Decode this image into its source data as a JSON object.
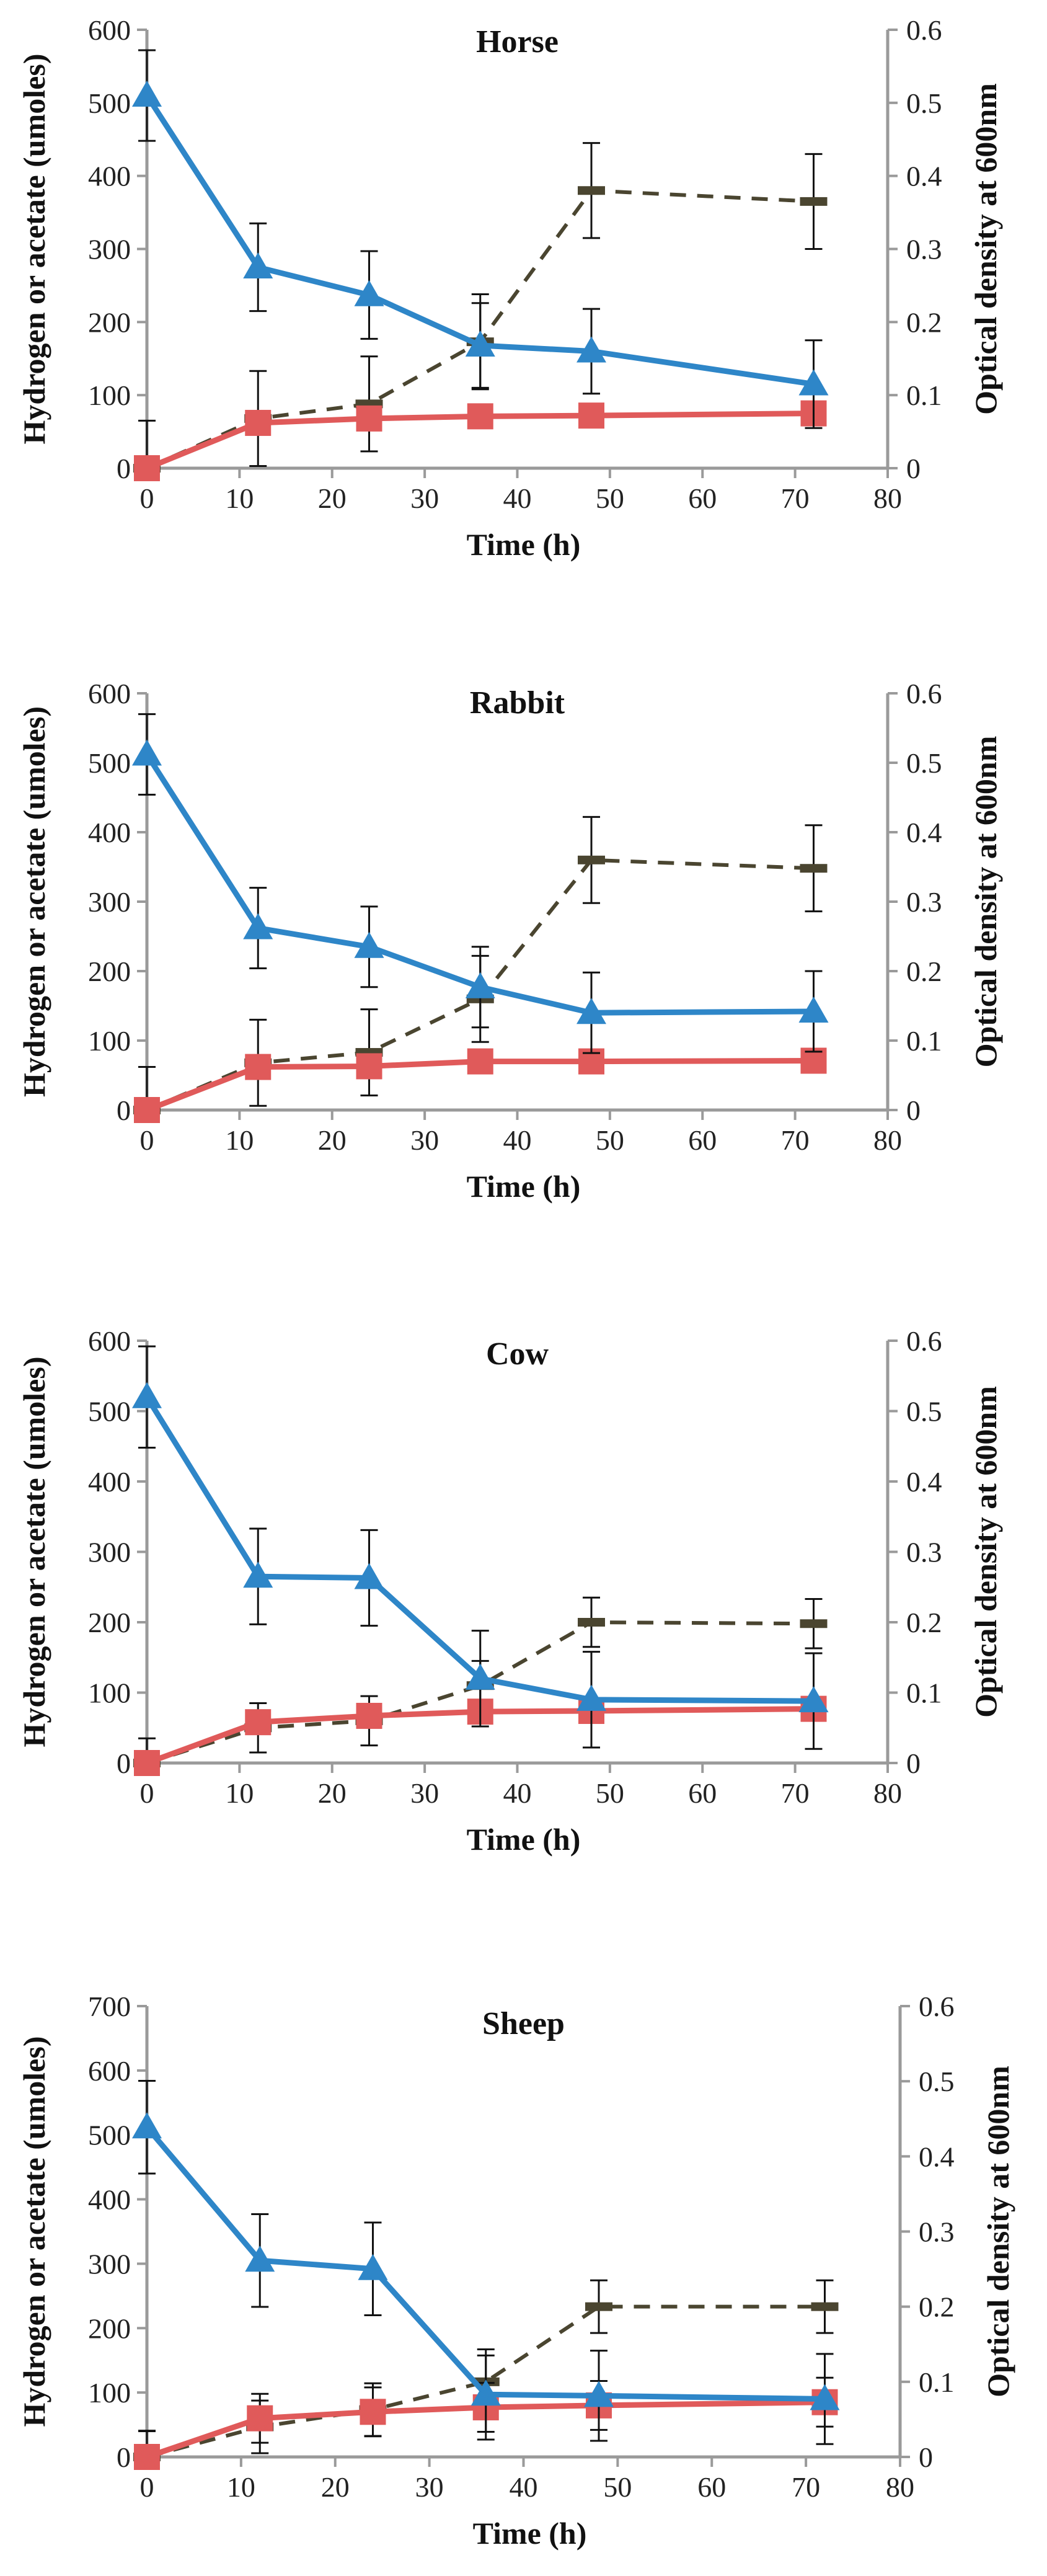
{
  "colors": {
    "hydrogen": "#2E86C8",
    "acetate": "#E05A5A",
    "od": "#4A4530",
    "axis_left": "#9a9a9a",
    "axis_right": "#9a9a9a",
    "error_bar": "#111111"
  },
  "chart_data": [
    {
      "type": "line",
      "title": "Horse",
      "xlabel": "Time (h)",
      "ylabel": "Hydrogen or acetate (umoles)",
      "y2label": "Optical density at 600nm",
      "xlim": [
        0,
        80
      ],
      "xticks": [
        0,
        10,
        20,
        30,
        40,
        50,
        60,
        70,
        80
      ],
      "ylim": [
        0,
        600
      ],
      "yticks": [
        0,
        100,
        200,
        300,
        400,
        500,
        600
      ],
      "y2lim": [
        0,
        0.6
      ],
      "y2ticks": [
        "0",
        "0.1",
        "0.2",
        "0.3",
        "0.4",
        "0.5",
        "0.6"
      ],
      "x": [
        0,
        12,
        24,
        36,
        48,
        72
      ],
      "series": [
        {
          "name": "Hydrogen",
          "axis": "left",
          "marker": "triangle",
          "values": [
            510,
            275,
            237,
            168,
            160,
            115
          ],
          "errors": [
            62,
            60,
            60,
            58,
            58,
            60
          ]
        },
        {
          "name": "Acetate",
          "axis": "left",
          "marker": "square",
          "values": [
            0,
            62,
            68,
            71,
            72,
            75
          ],
          "errors": [
            0,
            0,
            0,
            0,
            0,
            0
          ]
        },
        {
          "name": "Optical density",
          "axis": "right",
          "marker": "dash",
          "dashed": true,
          "values": [
            0,
            0.068,
            0.088,
            0.173,
            0.38,
            0.365
          ],
          "errors": [
            0.065,
            0.065,
            0.065,
            0.065,
            0.065,
            0.065
          ]
        }
      ]
    },
    {
      "type": "line",
      "title": "Rabbit",
      "xlabel": "Time (h)",
      "ylabel": "Hydrogen or acetate (umoles)",
      "y2label": "Optical density at 600nm",
      "xlim": [
        0,
        80
      ],
      "xticks": [
        0,
        10,
        20,
        30,
        40,
        50,
        60,
        70,
        80
      ],
      "ylim": [
        0,
        600
      ],
      "yticks": [
        0,
        100,
        200,
        300,
        400,
        500,
        600
      ],
      "y2lim": [
        0,
        0.6
      ],
      "y2ticks": [
        "0",
        "0.1",
        "0.2",
        "0.3",
        "0.4",
        "0.5",
        "0.6"
      ],
      "x": [
        0,
        12,
        24,
        36,
        48,
        72
      ],
      "series": [
        {
          "name": "Hydrogen",
          "axis": "left",
          "marker": "triangle",
          "values": [
            512,
            262,
            235,
            177,
            140,
            142
          ],
          "errors": [
            58,
            58,
            58,
            58,
            58,
            58
          ]
        },
        {
          "name": "Acetate",
          "axis": "left",
          "marker": "square",
          "values": [
            0,
            62,
            63,
            70,
            70,
            71
          ],
          "errors": [
            0,
            0,
            0,
            0,
            0,
            0
          ]
        },
        {
          "name": "Optical density",
          "axis": "right",
          "marker": "dash",
          "dashed": true,
          "values": [
            0,
            0.068,
            0.083,
            0.16,
            0.36,
            0.348
          ],
          "errors": [
            0.062,
            0.062,
            0.062,
            0.062,
            0.062,
            0.062
          ]
        }
      ]
    },
    {
      "type": "line",
      "title": "Cow",
      "xlabel": "Time (h)",
      "ylabel": "Hydrogen or acetate (umoles)",
      "y2label": "Optical density at 600nm",
      "xlim": [
        0,
        80
      ],
      "xticks": [
        0,
        10,
        20,
        30,
        40,
        50,
        60,
        70,
        80
      ],
      "ylim": [
        0,
        600
      ],
      "yticks": [
        0,
        100,
        200,
        300,
        400,
        500,
        600
      ],
      "y2lim": [
        0,
        0.6
      ],
      "y2ticks": [
        "0",
        "0.1",
        "0.2",
        "0.3",
        "0.4",
        "0.5",
        "0.6"
      ],
      "x": [
        0,
        12,
        24,
        36,
        48,
        72
      ],
      "series": [
        {
          "name": "Hydrogen",
          "axis": "left",
          "marker": "triangle",
          "values": [
            520,
            265,
            263,
            120,
            90,
            88
          ],
          "errors": [
            72,
            68,
            68,
            68,
            68,
            68
          ]
        },
        {
          "name": "Acetate",
          "axis": "left",
          "marker": "square",
          "values": [
            0,
            58,
            67,
            73,
            74,
            77
          ],
          "errors": [
            0,
            0,
            0,
            0,
            0,
            0
          ]
        },
        {
          "name": "Optical density",
          "axis": "right",
          "marker": "dash",
          "dashed": true,
          "values": [
            0,
            0.05,
            0.06,
            0.11,
            0.2,
            0.198
          ],
          "errors": [
            0.035,
            0.035,
            0.035,
            0.035,
            0.035,
            0.035
          ]
        }
      ]
    },
    {
      "type": "line",
      "title": "Sheep",
      "xlabel": "Time (h)",
      "ylabel": "Hydrogen or acetate (umoles)",
      "y2label": "Optical density at 600nm",
      "xlim": [
        0,
        80
      ],
      "xticks": [
        0,
        10,
        20,
        30,
        40,
        50,
        60,
        70,
        80
      ],
      "ylim": [
        0,
        700
      ],
      "yticks": [
        0,
        100,
        200,
        300,
        400,
        500,
        600,
        700
      ],
      "y2lim": [
        0,
        0.6
      ],
      "y2ticks": [
        "0",
        "0.1",
        "0.2",
        "0.3",
        "0.4",
        "0.5",
        "0.6"
      ],
      "x": [
        0,
        12,
        24,
        36,
        48,
        72
      ],
      "series": [
        {
          "name": "Hydrogen",
          "axis": "left",
          "marker": "triangle",
          "values": [
            512,
            305,
            292,
            97,
            95,
            90
          ],
          "errors": [
            72,
            72,
            72,
            70,
            70,
            70
          ]
        },
        {
          "name": "Acetate",
          "axis": "left",
          "marker": "square",
          "values": [
            0,
            60,
            70,
            77,
            80,
            85
          ],
          "errors": [
            40,
            38,
            38,
            38,
            38,
            38
          ]
        },
        {
          "name": "Optical density",
          "axis": "right",
          "marker": "dash",
          "dashed": true,
          "values": [
            0,
            0.04,
            0.063,
            0.1,
            0.2,
            0.2
          ],
          "errors": [
            0.035,
            0.035,
            0.035,
            0.035,
            0.035,
            0.035
          ]
        }
      ]
    }
  ]
}
